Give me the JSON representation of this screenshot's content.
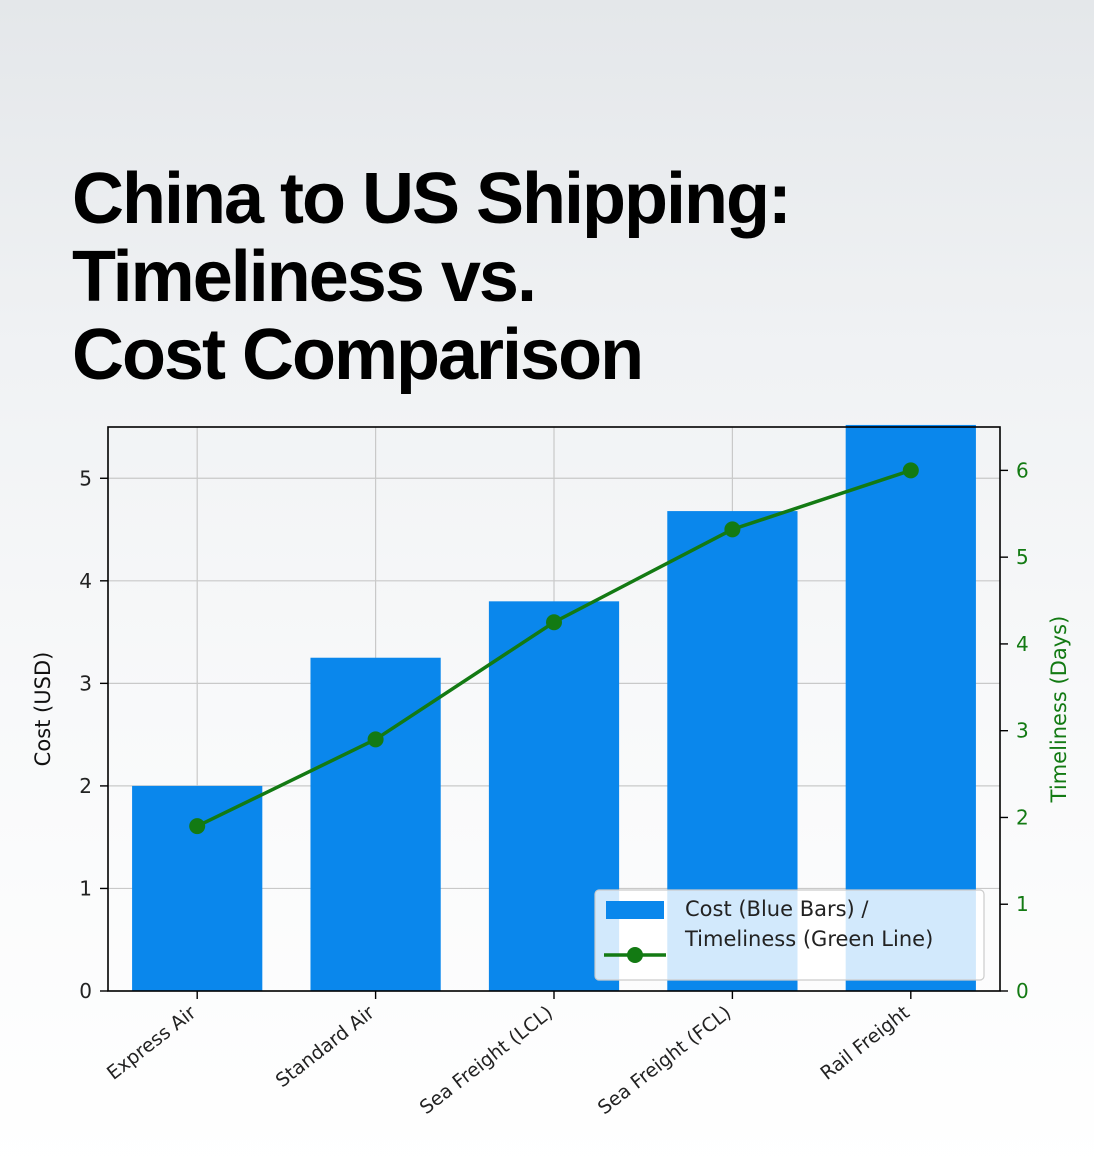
{
  "title_lines": [
    "China to US Shipping:",
    "Timeliness vs.",
    "Cost Comparison"
  ],
  "chart_data": {
    "type": "bar",
    "categories": [
      "Express Air",
      "Standard Air",
      "Sea Freight (LCL)",
      "Sea Freight (FCL)",
      "Rail Freight"
    ],
    "series": [
      {
        "type": "bar",
        "axis": "left",
        "values": [
          2.0,
          3.25,
          3.8,
          4.68,
          5.52
        ],
        "color": "#0a87ec"
      },
      {
        "type": "line",
        "axis": "right",
        "values": [
          1.9,
          2.9,
          4.25,
          5.32,
          6.0
        ],
        "color": "#137a13"
      }
    ],
    "ylabel": "Cost (USD)",
    "y2label": "Timeliness (Days)",
    "ylim": [
      0,
      5.5
    ],
    "y2lim": [
      0,
      6.5
    ],
    "yticks": [
      "0",
      "1",
      "2",
      "3",
      "4",
      "5"
    ],
    "y2ticks": [
      "0",
      "1",
      "2",
      "3",
      "4",
      "5",
      "6"
    ],
    "grid": true,
    "legend": {
      "position": "bottom-right",
      "lines": [
        "Cost (Blue Bars) /",
        "Timeliness (Green Line)"
      ]
    }
  }
}
